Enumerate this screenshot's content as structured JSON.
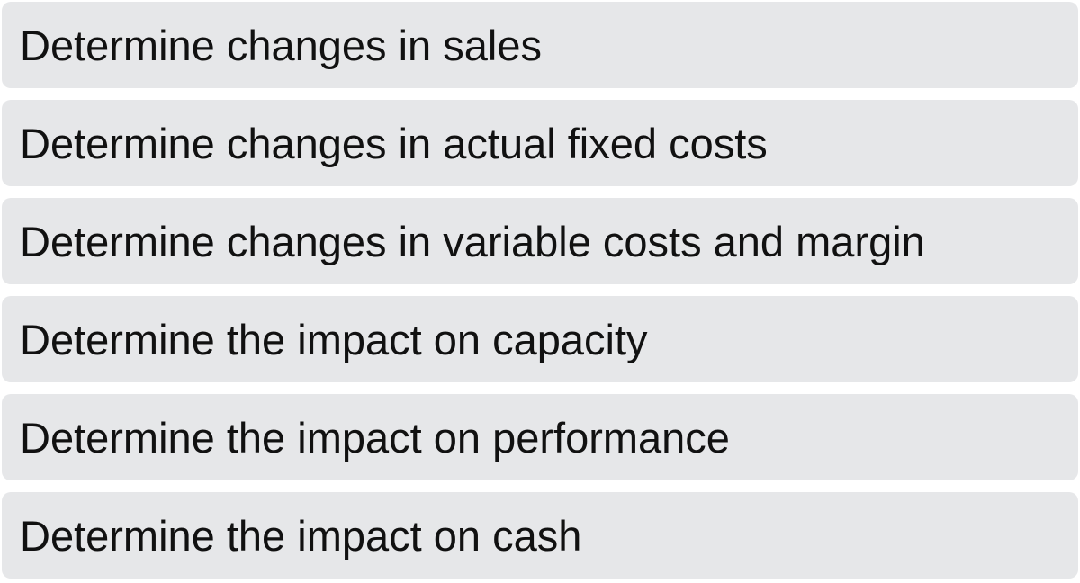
{
  "steps": [
    {
      "label": "Determine changes in sales"
    },
    {
      "label": "Determine changes in actual fixed costs"
    },
    {
      "label": "Determine changes in variable costs and margin"
    },
    {
      "label": "Determine the impact on capacity"
    },
    {
      "label": "Determine the impact on performance"
    },
    {
      "label": "Determine the impact on cash"
    }
  ],
  "colors": {
    "box_fill": "#e6e7e9",
    "text": "#111111",
    "background": "#ffffff"
  }
}
